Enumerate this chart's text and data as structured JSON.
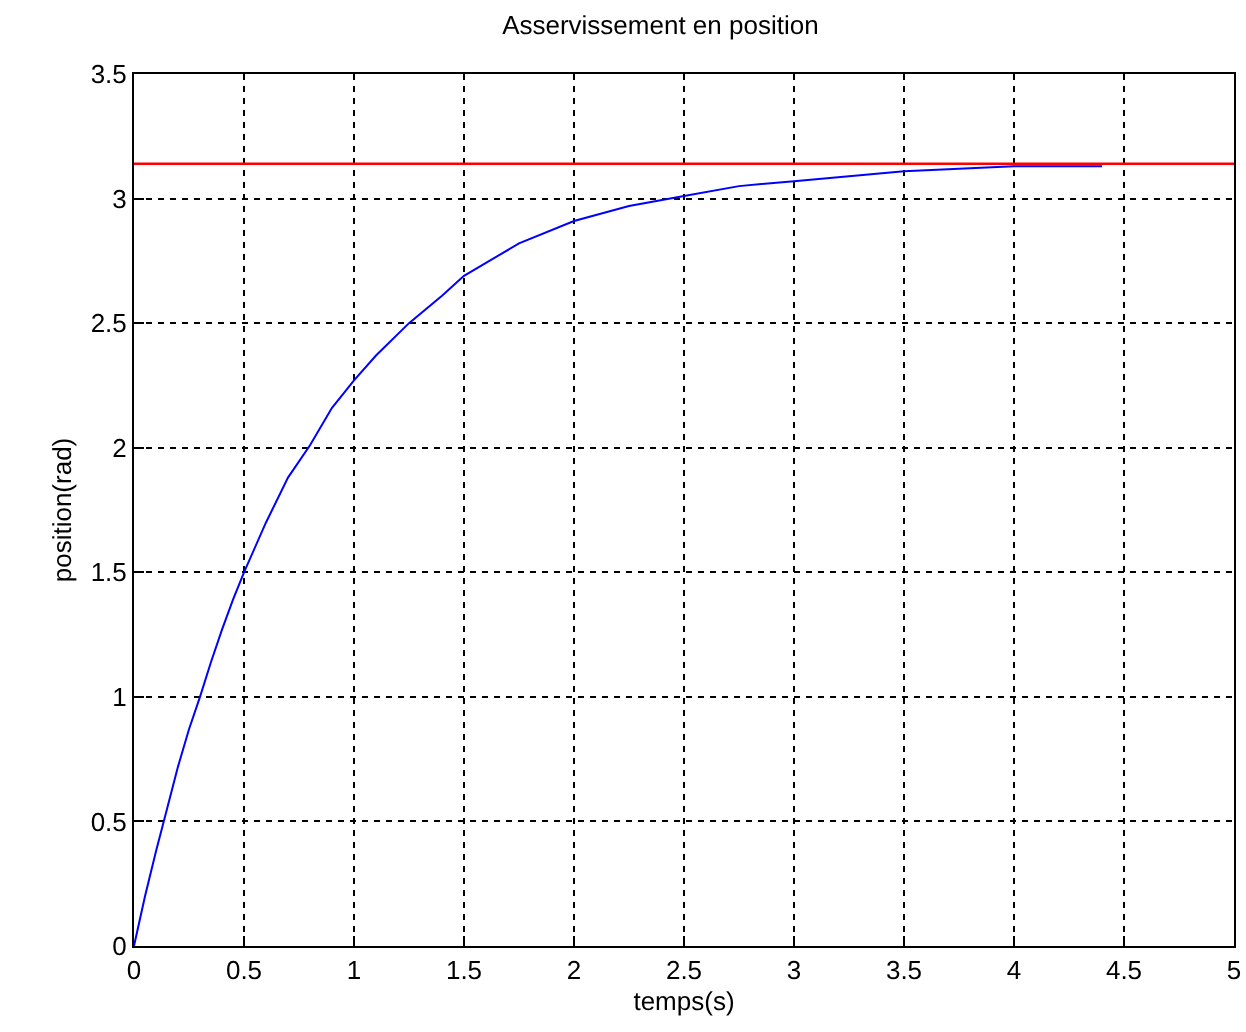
{
  "chart_data": {
    "type": "line",
    "title": "Asservissement en position",
    "xlabel": "temps(s)",
    "ylabel": "position(rad)",
    "x": [
      0,
      0.05,
      0.1,
      0.15,
      0.2,
      0.25,
      0.3,
      0.35,
      0.4,
      0.45,
      0.5,
      0.6,
      0.7,
      0.8,
      0.9,
      1.0,
      1.1,
      1.25,
      1.4,
      1.5,
      1.75,
      2.0,
      2.25,
      2.5,
      2.75,
      3.0,
      3.25,
      3.5,
      4.0,
      4.4
    ],
    "series": [
      {
        "color": "#0000ff",
        "values": [
          0,
          0.2,
          0.38,
          0.55,
          0.72,
          0.87,
          1.0,
          1.14,
          1.27,
          1.39,
          1.5,
          1.7,
          1.88,
          2.01,
          2.16,
          2.27,
          2.37,
          2.5,
          2.61,
          2.69,
          2.82,
          2.91,
          2.97,
          3.01,
          3.05,
          3.07,
          3.09,
          3.11,
          3.13,
          3.13
        ]
      }
    ],
    "ref_lines": [
      {
        "axis": "y",
        "value": 3.14,
        "color": "#ff0000"
      }
    ],
    "xlim": [
      0,
      5
    ],
    "xticks": [
      0,
      0.5,
      1,
      1.5,
      2,
      2.5,
      3,
      3.5,
      4,
      4.5,
      5
    ],
    "ylim": [
      0,
      3.5
    ],
    "yticks": [
      0,
      0.5,
      1,
      1.5,
      2,
      2.5,
      3,
      3.5
    ],
    "grid": true,
    "marker": "none",
    "line_style": "solid"
  }
}
